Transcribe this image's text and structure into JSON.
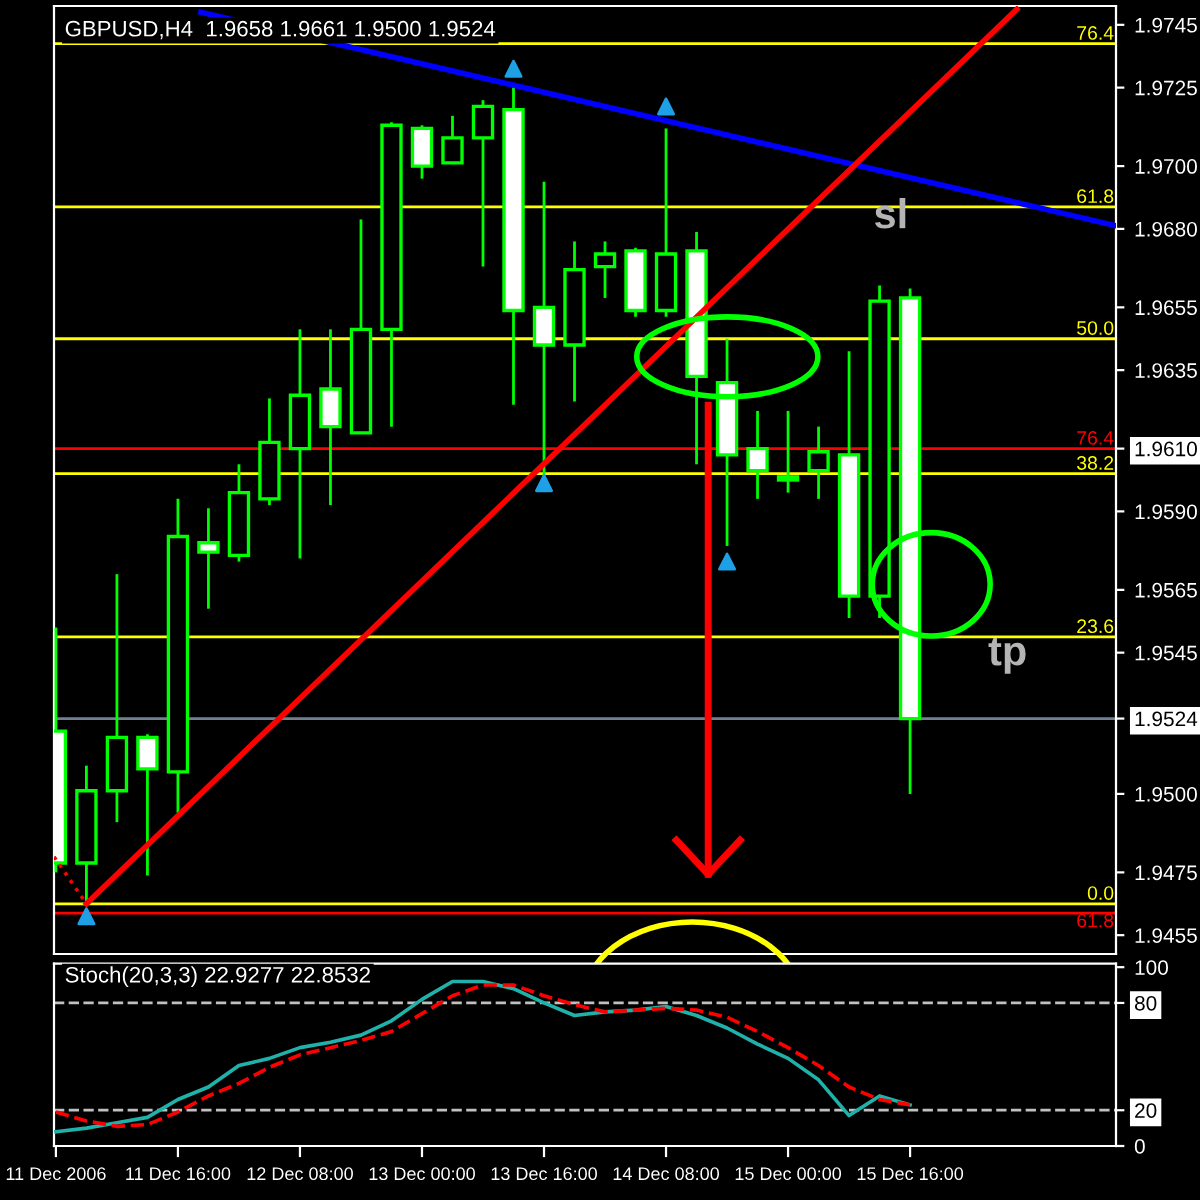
{
  "chart_data": [
    {
      "type": "candlestick",
      "title": "GBPUSD,H4  1.9658 1.9661 1.9500 1.9524",
      "xlim": [
        "2006-12-10T23:45",
        "2006-12-16T19:00"
      ],
      "ylim": [
        1.9449,
        1.9751
      ],
      "yticks": [
        {
          "value": 1.9745,
          "label": "1.9745"
        },
        {
          "value": 1.9725,
          "label": "1.9725"
        },
        {
          "value": 1.97,
          "label": "1.9700"
        },
        {
          "value": 1.968,
          "label": "1.9680"
        },
        {
          "value": 1.9655,
          "label": "1.9655"
        },
        {
          "value": 1.9635,
          "label": "1.9635"
        },
        {
          "value": 1.961,
          "label": "1.9610"
        },
        {
          "value": 1.959,
          "label": "1.9590"
        },
        {
          "value": 1.9565,
          "label": "1.9565"
        },
        {
          "value": 1.9545,
          "label": "1.9545"
        },
        {
          "value": 1.9524,
          "label": "1.9524"
        },
        {
          "value": 1.95,
          "label": "1.9500"
        },
        {
          "value": 1.9475,
          "label": "1.9475"
        },
        {
          "value": 1.9455,
          "label": "1.9455"
        }
      ],
      "tick_labels": "y",
      "series": [
        {
          "type": "candlestick",
          "color": "#00ff00",
          "x": [
            "2006-12-11T00:00",
            "2006-12-11T04:00",
            "2006-12-11T08:00",
            "2006-12-11T12:00",
            "2006-12-11T16:00",
            "2006-12-11T20:00",
            "2006-12-12T00:00",
            "2006-12-12T04:00",
            "2006-12-12T08:00",
            "2006-12-12T12:00",
            "2006-12-12T16:00",
            "2006-12-12T20:00",
            "2006-12-13T00:00",
            "2006-12-13T04:00",
            "2006-12-13T08:00",
            "2006-12-13T12:00",
            "2006-12-13T16:00",
            "2006-12-13T20:00",
            "2006-12-14T00:00",
            "2006-12-14T04:00",
            "2006-12-14T08:00",
            "2006-12-14T12:00",
            "2006-12-14T16:00",
            "2006-12-14T20:00",
            "2006-12-15T00:00",
            "2006-12-15T04:00",
            "2006-12-15T08:00",
            "2006-12-15T12:00",
            "2006-12-15T16:00"
          ],
          "colors": [
            "#ffffff",
            "#000000",
            "#000000",
            "#ffffff",
            "#000000",
            "#ffffff",
            "#000000",
            "#000000",
            "#000000",
            "#ffffff",
            "#000000",
            "#000000",
            "#ffffff",
            "#000000",
            "#000000",
            "#ffffff",
            "#ffffff",
            "#000000",
            "#000000",
            "#ffffff",
            "#000000",
            "#ffffff",
            "#ffffff",
            "#ffffff",
            "#ffffff",
            "#000000",
            "#ffffff",
            "#000000",
            "#ffffff"
          ],
          "ohlc": [
            [
              1.952,
              1.9553,
              1.9475,
              1.9478
            ],
            [
              1.9478,
              1.9509,
              1.9465,
              1.9501
            ],
            [
              1.9501,
              1.957,
              1.9491,
              1.9518
            ],
            [
              1.9518,
              1.9519,
              1.9474,
              1.9508
            ],
            [
              1.9507,
              1.9594,
              1.9494,
              1.9582
            ],
            [
              1.958,
              1.9591,
              1.9559,
              1.9577
            ],
            [
              1.9576,
              1.9605,
              1.9574,
              1.9596
            ],
            [
              1.9594,
              1.9626,
              1.9592,
              1.9612
            ],
            [
              1.961,
              1.9648,
              1.9575,
              1.9627
            ],
            [
              1.9629,
              1.9648,
              1.9592,
              1.9617
            ],
            [
              1.9615,
              1.9683,
              1.9615,
              1.9648
            ],
            [
              1.9648,
              1.9714,
              1.9617,
              1.9713
            ],
            [
              1.9712,
              1.9713,
              1.9696,
              1.97
            ],
            [
              1.9701,
              1.9716,
              1.9701,
              1.9709
            ],
            [
              1.9709,
              1.9721,
              1.9668,
              1.9719
            ],
            [
              1.9718,
              1.9726,
              1.9624,
              1.9654
            ],
            [
              1.9655,
              1.9695,
              1.9601,
              1.9643
            ],
            [
              1.9643,
              1.9676,
              1.9625,
              1.9667
            ],
            [
              1.9668,
              1.9676,
              1.9658,
              1.9672
            ],
            [
              1.9673,
              1.9674,
              1.9652,
              1.9654
            ],
            [
              1.9654,
              1.9712,
              1.9652,
              1.9672
            ],
            [
              1.9673,
              1.9679,
              1.9605,
              1.9633
            ],
            [
              1.9631,
              1.9645,
              1.9579,
              1.9608
            ],
            [
              1.961,
              1.9622,
              1.9594,
              1.9603
            ],
            [
              1.9601,
              1.9622,
              1.9596,
              1.96
            ],
            [
              1.9603,
              1.9617,
              1.9594,
              1.9609
            ],
            [
              1.9608,
              1.9641,
              1.9556,
              1.9563
            ],
            [
              1.9563,
              1.9662,
              1.9556,
              1.9657
            ],
            [
              1.9658,
              1.9661,
              1.95,
              1.9524
            ]
          ]
        },
        {
          "type": "line",
          "color": "#0000ff",
          "x": [
            "2006-12-11T19:00",
            "2006-12-16T19:00"
          ],
          "values": [
            1.9749,
            1.9681
          ]
        },
        {
          "type": "line",
          "color": "#ff0000",
          "x": [
            "2006-12-11T04:00",
            "2006-12-16T06:00"
          ],
          "values": [
            1.9465,
            1.975
          ]
        },
        {
          "type": "line",
          "color": "#ff0000",
          "line_style": "dotted",
          "x": [
            "2006-12-10T23:45",
            "2006-12-11T04:00"
          ],
          "values": [
            1.948,
            1.9465
          ]
        },
        {
          "type": "scatter",
          "color": "#1ea0e6",
          "marker": "triangle",
          "x": [
            "2006-12-13T12:00",
            "2006-12-14T08:00",
            "2006-12-11T04:00",
            "2006-12-13T16:00",
            "2006-12-14T16:00"
          ],
          "values": [
            1.9731,
            1.9719,
            1.9461,
            1.9599,
            1.9574
          ]
        }
      ],
      "ref_lines": [
        {
          "axis": "y",
          "value": 1.9739,
          "color": "#ffff00"
        },
        {
          "axis": "y",
          "value": 1.9687,
          "color": "#ffff00"
        },
        {
          "axis": "y",
          "value": 1.9645,
          "color": "#ffff00"
        },
        {
          "axis": "y",
          "value": 1.9602,
          "color": "#ffff00"
        },
        {
          "axis": "y",
          "value": 1.955,
          "color": "#ffff00"
        },
        {
          "axis": "y",
          "value": 1.9465,
          "color": "#ffff00"
        },
        {
          "axis": "y",
          "value": 1.961,
          "color": "#ff0000"
        },
        {
          "axis": "y",
          "value": 1.9462,
          "color": "#ff0000"
        },
        {
          "axis": "y",
          "value": 1.9524,
          "color": "#708090"
        }
      ],
      "annotations": [
        {
          "text": "76.4",
          "x": "2006-12-16T18:45",
          "y": 1.9739
        },
        {
          "text": "61.8",
          "x": "2006-12-16T18:45",
          "y": 1.9687
        },
        {
          "text": "50.0",
          "x": "2006-12-16T18:45",
          "y": 1.9645
        },
        {
          "text": "38.2",
          "x": "2006-12-16T18:45",
          "y": 1.9602
        },
        {
          "text": "23.6",
          "x": "2006-12-16T18:45",
          "y": 1.955
        },
        {
          "text": "0.0",
          "x": "2006-12-16T18:45",
          "y": 1.9465
        },
        {
          "text": "76.4",
          "x": "2006-12-16T18:45",
          "y": 1.961
        },
        {
          "text": "61.8",
          "x": "2006-12-16T18:45",
          "y": 1.9462
        },
        "sl",
        "tp"
      ]
    },
    {
      "type": "line",
      "title": "Stoch(20,3,3) 22.9277 22.8532",
      "xlim": [
        "2006-12-10T23:45",
        "2006-12-16T19:00"
      ],
      "ylim": [
        0,
        102
      ],
      "yticks": [
        0,
        20,
        80,
        100
      ],
      "xticks": [
        {
          "value": "2006-12-11T00:00",
          "label": "11 Dec 2006"
        },
        {
          "value": "2006-12-11T16:00",
          "label": "11 Dec 16:00"
        },
        {
          "value": "2006-12-12T08:00",
          "label": "12 Dec 08:00"
        },
        {
          "value": "2006-12-13T00:00",
          "label": "13 Dec 00:00"
        },
        {
          "value": "2006-12-13T16:00",
          "label": "13 Dec 16:00"
        },
        {
          "value": "2006-12-14T08:00",
          "label": "14 Dec 08:00"
        },
        {
          "value": "2006-12-15T00:00",
          "label": "15 Dec 00:00"
        },
        {
          "value": "2006-12-15T16:00",
          "label": "15 Dec 16:00"
        }
      ],
      "x": [
        "2006-12-11T00:00",
        "2006-12-11T04:00",
        "2006-12-11T08:00",
        "2006-12-11T12:00",
        "2006-12-11T16:00",
        "2006-12-11T20:00",
        "2006-12-12T00:00",
        "2006-12-12T04:00",
        "2006-12-12T08:00",
        "2006-12-12T12:00",
        "2006-12-12T16:00",
        "2006-12-12T20:00",
        "2006-12-13T00:00",
        "2006-12-13T04:00",
        "2006-12-13T08:00",
        "2006-12-13T12:00",
        "2006-12-13T16:00",
        "2006-12-13T20:00",
        "2006-12-14T00:00",
        "2006-12-14T04:00",
        "2006-12-14T08:00",
        "2006-12-14T12:00",
        "2006-12-14T16:00",
        "2006-12-14T20:00",
        "2006-12-15T00:00",
        "2006-12-15T04:00",
        "2006-12-15T08:00",
        "2006-12-15T12:00",
        "2006-12-15T16:00"
      ],
      "series": [
        {
          "color": "#20b2aa",
          "line_style": "solid",
          "values": [
            8,
            10,
            13,
            16,
            26,
            33,
            45,
            49,
            55,
            58,
            62,
            70,
            82,
            92,
            92,
            88,
            80,
            73,
            75,
            76,
            78,
            73,
            66,
            57,
            49,
            37,
            17,
            28,
            23
          ]
        },
        {
          "color": "#ff0000",
          "line_style": "dashed",
          "values": [
            19,
            14,
            11,
            12,
            19,
            28,
            35,
            44,
            51,
            55,
            59,
            64,
            74,
            84,
            90,
            90,
            84,
            79,
            75,
            76,
            77,
            76,
            72,
            64,
            55,
            45,
            33,
            26,
            23
          ]
        }
      ],
      "ref_lines": [
        {
          "axis": "y",
          "value": 80,
          "color": "#c0c0c0",
          "line_style": "dashed"
        },
        {
          "axis": "y",
          "value": 20,
          "color": "#c0c0c0",
          "line_style": "dashed"
        }
      ]
    }
  ]
}
